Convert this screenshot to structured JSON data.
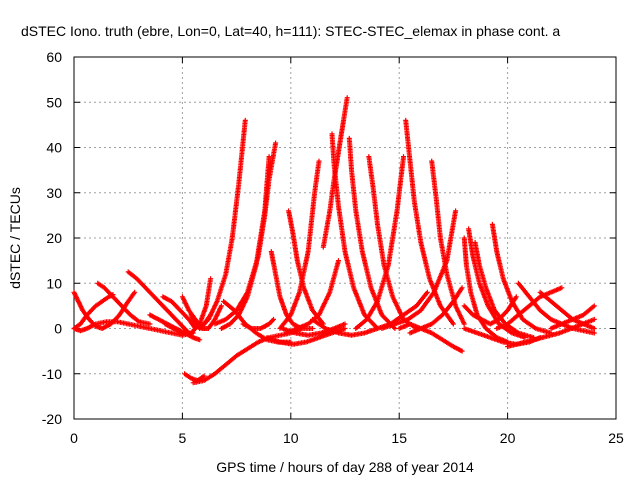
{
  "chart_data": {
    "type": "scatter",
    "title": "dSTEC Iono. truth (ebre, Lon=0, Lat=40, h=111): STEC-STEC_elemax in phase cont. a",
    "xlabel": "GPS time / hours of day 288 of year 2014",
    "ylabel": "dSTEC  / TECUs",
    "xlim": [
      0,
      25
    ],
    "ylim": [
      -20,
      60
    ],
    "x_ticks": [
      "0",
      "5",
      "10",
      "15",
      "20",
      "25"
    ],
    "y_ticks": [
      "-20",
      "-10",
      "0",
      "10",
      "20",
      "30",
      "40",
      "50",
      "60"
    ],
    "x_tick_values": [
      0,
      5,
      10,
      15,
      20,
      25
    ],
    "y_tick_values": [
      -20,
      -10,
      0,
      10,
      20,
      30,
      40,
      50,
      60
    ],
    "grid": true,
    "marker": "+",
    "color": "#ff0000",
    "series": [
      {
        "x": [
          0.0,
          0.2,
          0.4,
          0.7,
          1.0,
          1.3,
          1.7,
          2.1,
          2.5,
          2.8
        ],
        "y": [
          8,
          6,
          4,
          2,
          0.5,
          0,
          1,
          3,
          6,
          8
        ]
      },
      {
        "x": [
          0.0,
          0.3,
          0.6,
          1.0,
          1.5,
          2.0,
          2.5,
          3.0,
          3.5,
          4.0,
          4.5,
          5.0,
          5.5
        ],
        "y": [
          0,
          -0.5,
          0,
          1,
          1.5,
          1.5,
          1,
          0.5,
          0,
          -0.5,
          -1,
          -1.5,
          -1
        ]
      },
      {
        "x": [
          0.0,
          0.3,
          0.6,
          1.0,
          1.3,
          1.6,
          1.8
        ],
        "y": [
          0,
          1,
          3,
          5,
          6,
          7,
          7.5
        ]
      },
      {
        "x": [
          1.1,
          1.4,
          1.8,
          2.2,
          2.6,
          3.0,
          3.5
        ],
        "y": [
          10,
          9,
          7,
          5,
          3,
          1.5,
          1
        ]
      },
      {
        "x": [
          2.5,
          2.9,
          3.3,
          3.7,
          4.1,
          4.5,
          4.9,
          5.3
        ],
        "y": [
          12.5,
          11,
          9,
          7,
          5,
          3,
          1,
          -1
        ]
      },
      {
        "x": [
          3.5,
          3.9,
          4.3,
          4.7,
          5.1,
          5.5,
          5.8
        ],
        "y": [
          3,
          2,
          1,
          0,
          -1,
          -2,
          -2.5
        ]
      },
      {
        "x": [
          4.1,
          4.5,
          4.9,
          5.3,
          5.6
        ],
        "y": [
          7,
          6,
          4,
          2,
          0
        ]
      },
      {
        "x": [
          4.2,
          4.6,
          5.0,
          5.4,
          5.8,
          6.1,
          6.3
        ],
        "y": [
          1,
          0,
          -1,
          -1,
          1,
          5,
          11
        ]
      },
      {
        "x": [
          5.4,
          5.6,
          5.8,
          6.0,
          6.3
        ],
        "y": [
          3,
          1,
          0,
          1,
          3
        ]
      },
      {
        "x": [
          5.0,
          5.3,
          5.6,
          5.9,
          6.2,
          6.5,
          6.8
        ],
        "y": [
          7,
          4,
          2,
          0,
          0,
          2,
          5
        ]
      },
      {
        "x": [
          5.1,
          5.4,
          5.7,
          6.0
        ],
        "y": [
          -10,
          -11,
          -11.5,
          -10.5
        ]
      },
      {
        "x": [
          5.5,
          6.0,
          6.5,
          7.0,
          7.5,
          8.0,
          8.5,
          9.0,
          9.5,
          10.0,
          10.5
        ],
        "y": [
          -12,
          -11.5,
          -10,
          -8,
          -6,
          -4.5,
          -3,
          -2,
          -1.5,
          -1,
          0
        ]
      },
      {
        "x": [
          5.8,
          6.2,
          6.6,
          7.0,
          7.3,
          7.6,
          7.9
        ],
        "y": [
          0,
          2,
          6,
          12,
          20,
          32,
          46
        ]
      },
      {
        "x": [
          6.5,
          7.0,
          7.5,
          8.0,
          8.5,
          8.8,
          9.0,
          9.3
        ],
        "y": [
          1,
          2,
          4,
          8,
          16,
          25,
          33,
          41
        ]
      },
      {
        "x": [
          6.8,
          7.2,
          7.6,
          8.0,
          8.4,
          8.8,
          9.0
        ],
        "y": [
          0,
          1,
          3,
          7,
          14,
          26,
          38
        ]
      },
      {
        "x": [
          6.9,
          7.4,
          7.9,
          8.4,
          8.9,
          9.4,
          10.0
        ],
        "y": [
          6,
          4,
          1,
          -1,
          -2.5,
          -3,
          -3
        ]
      },
      {
        "x": [
          7.8,
          8.2,
          8.6,
          9.0,
          9.2
        ],
        "y": [
          1,
          0,
          0,
          1,
          2
        ]
      },
      {
        "x": [
          9.1,
          9.3,
          9.5,
          9.8,
          10.1,
          10.5,
          11.0
        ],
        "y": [
          17,
          12,
          7,
          3,
          1,
          0,
          0
        ]
      },
      {
        "x": [
          8.9,
          9.5,
          10.1,
          10.7,
          11.3,
          11.9,
          12.5
        ],
        "y": [
          -2,
          -3,
          -3.5,
          -3,
          -2,
          -1,
          0
        ]
      },
      {
        "x": [
          9.9,
          10.1,
          10.3,
          10.6,
          11.0,
          11.5
        ],
        "y": [
          26,
          21,
          15,
          9,
          4,
          1
        ]
      },
      {
        "x": [
          9.5,
          10.0,
          10.4,
          10.8,
          11.1,
          11.3
        ],
        "y": [
          0,
          3,
          8,
          17,
          30,
          37
        ]
      },
      {
        "x": [
          9.8,
          10.3,
          10.8,
          11.3,
          11.8,
          12.2
        ],
        "y": [
          -1,
          0,
          1,
          3,
          8,
          15
        ]
      },
      {
        "x": [
          9.6,
          10.2,
          10.8,
          11.4,
          12.0,
          12.5
        ],
        "y": [
          0,
          -1,
          -1.5,
          -1,
          0,
          1
        ]
      },
      {
        "x": [
          11.9,
          12.0,
          12.2,
          12.5,
          12.9,
          13.4,
          14.0
        ],
        "y": [
          43,
          36,
          27,
          17,
          9,
          3,
          0
        ]
      },
      {
        "x": [
          11.5,
          11.8,
          12.0,
          12.2,
          12.4,
          12.6
        ],
        "y": [
          18,
          26,
          33,
          39,
          45,
          51
        ]
      },
      {
        "x": [
          12.7,
          12.8,
          13.0,
          13.3,
          13.7,
          14.2,
          14.8
        ],
        "y": [
          42,
          35,
          26,
          17,
          9,
          3,
          0
        ]
      },
      {
        "x": [
          11.0,
          11.6,
          12.2,
          12.8,
          13.4,
          14.0,
          14.6,
          15.2,
          15.8,
          16.3
        ],
        "y": [
          2,
          0,
          -1,
          -1.5,
          -1,
          0,
          1,
          3,
          5,
          8
        ]
      },
      {
        "x": [
          13.6,
          13.8,
          14.0,
          14.3,
          14.7,
          15.2,
          15.8
        ],
        "y": [
          38,
          31,
          23,
          14,
          7,
          2,
          0
        ]
      },
      {
        "x": [
          13.0,
          13.5,
          14.0,
          14.5,
          14.9,
          15.2
        ],
        "y": [
          0,
          2,
          6,
          14,
          26,
          38
        ]
      },
      {
        "x": [
          15.3,
          15.5,
          15.7,
          16.0,
          16.4,
          16.9,
          17.5
        ],
        "y": [
          46,
          37,
          28,
          19,
          11,
          5,
          1
        ]
      },
      {
        "x": [
          14.2,
          14.8,
          15.4,
          16.0,
          16.6,
          17.2,
          17.6
        ],
        "y": [
          0,
          1,
          2,
          4,
          8,
          15,
          26
        ]
      },
      {
        "x": [
          16.5,
          16.7,
          16.9,
          17.2,
          17.6,
          18.0
        ],
        "y": [
          37,
          29,
          20,
          12,
          5,
          1
        ]
      },
      {
        "x": [
          15.0,
          15.5,
          16.0,
          16.5,
          17.0,
          17.5,
          17.9
        ],
        "y": [
          0,
          1,
          0,
          -1,
          -2.5,
          -4,
          -5
        ]
      },
      {
        "x": [
          15.5,
          16.0,
          16.5,
          17.0,
          17.5,
          17.9
        ],
        "y": [
          -1,
          0,
          1,
          3,
          6,
          9
        ]
      },
      {
        "x": [
          18.0,
          18.1,
          18.3,
          18.6,
          19.0,
          19.5,
          20.0
        ],
        "y": [
          20,
          14,
          8,
          3,
          0,
          -2,
          -3
        ]
      },
      {
        "x": [
          18.2,
          18.4,
          18.7,
          19.1,
          19.6,
          20.2,
          20.8
        ],
        "y": [
          22,
          16,
          10,
          5,
          1,
          -1,
          -2
        ]
      },
      {
        "x": [
          18.5,
          18.7,
          19.0,
          19.4,
          19.9,
          20.5,
          21.2
        ],
        "y": [
          19,
          14,
          9,
          4,
          1,
          -1,
          -2
        ]
      },
      {
        "x": [
          19.3,
          19.5,
          19.8,
          20.2,
          20.7,
          21.3,
          22.0
        ],
        "y": [
          23,
          17,
          11,
          6,
          2,
          0,
          -1
        ]
      },
      {
        "x": [
          18.0,
          18.6,
          19.2,
          19.8,
          20.4,
          21.0,
          21.5
        ],
        "y": [
          0,
          -1,
          -2,
          -3,
          -3.5,
          -3,
          -2
        ]
      },
      {
        "x": [
          18.0,
          18.4,
          18.8,
          19.2,
          19.6,
          20.0,
          20.4
        ],
        "y": [
          5,
          3,
          2,
          1,
          2,
          4,
          7
        ]
      },
      {
        "x": [
          19.5,
          20.0,
          20.5,
          21.0,
          21.5,
          22.0,
          22.5
        ],
        "y": [
          0,
          1,
          3,
          5,
          7,
          8,
          9
        ]
      },
      {
        "x": [
          20.5,
          21.0,
          21.5,
          22.0,
          22.5,
          23.0,
          23.5,
          24.0
        ],
        "y": [
          10,
          7,
          4,
          2,
          1,
          0,
          -0.5,
          -1
        ]
      },
      {
        "x": [
          21.5,
          22.0,
          22.5,
          23.0,
          23.5,
          24.0
        ],
        "y": [
          8,
          6,
          4,
          2,
          1,
          0
        ]
      },
      {
        "x": [
          20.0,
          20.8,
          21.6,
          22.4,
          23.2,
          24.0
        ],
        "y": [
          -4,
          -3,
          -2,
          -1,
          0.5,
          2
        ]
      },
      {
        "x": [
          22.0,
          22.5,
          23.0,
          23.5,
          24.0
        ],
        "y": [
          0,
          1,
          2,
          3,
          5
        ]
      }
    ]
  }
}
